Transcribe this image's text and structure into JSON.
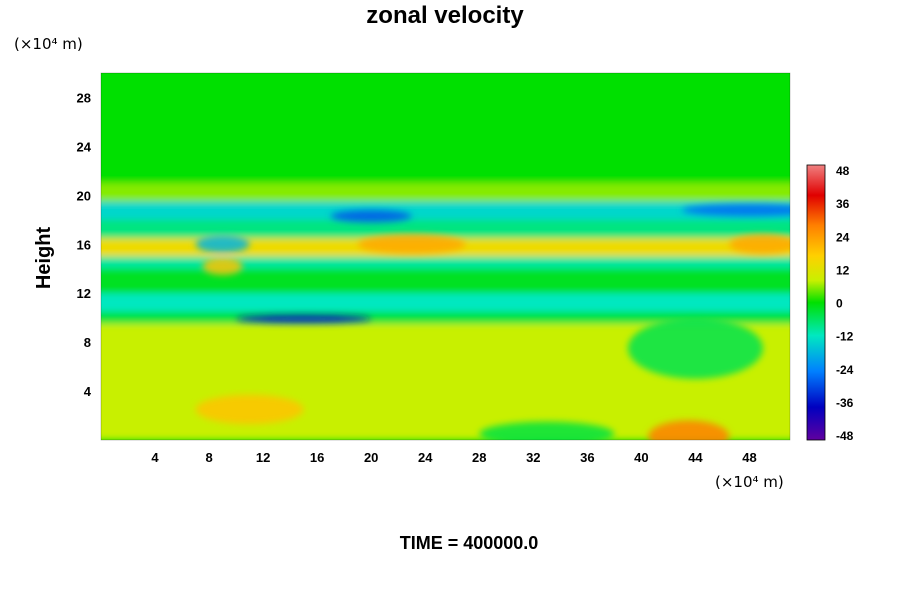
{
  "chart_data": {
    "type": "heatmap",
    "title": "zonal velocity",
    "ylabel": "Height",
    "x_unit": "(×10⁴ m)",
    "y_unit": "(×10⁴ m)",
    "footer": "TIME = 400000.0",
    "xlim": [
      0,
      51
    ],
    "ylim": [
      0,
      30
    ],
    "x_ticks": [
      4,
      8,
      12,
      16,
      20,
      24,
      28,
      32,
      36,
      40,
      44,
      48
    ],
    "y_ticks": [
      4,
      8,
      12,
      16,
      20,
      24,
      28
    ],
    "colorbar": {
      "range": [
        -48,
        48
      ],
      "ticks": [
        48,
        36,
        24,
        12,
        0,
        -12,
        -24,
        -36,
        -48
      ],
      "colors": [
        "#f08080",
        "#e00000",
        "#ff8000",
        "#ffd000",
        "#c8f000",
        "#00e000",
        "#00e8c0",
        "#0080ff",
        "#0000c0",
        "#6000a0"
      ]
    },
    "bands": [
      {
        "y": [
          0,
          9.5
        ],
        "value": 6
      },
      {
        "y": [
          9.5,
          10.5
        ],
        "value": -4
      },
      {
        "y": [
          10.5,
          12
        ],
        "value": -12
      },
      {
        "y": [
          12,
          14
        ],
        "value": -2
      },
      {
        "y": [
          14,
          15
        ],
        "value": -10
      },
      {
        "y": [
          15,
          16.5
        ],
        "value": 10
      },
      {
        "y": [
          16.5,
          18
        ],
        "value": -8
      },
      {
        "y": [
          18,
          19.5
        ],
        "value": -14
      },
      {
        "y": [
          19.5,
          21
        ],
        "value": 4
      },
      {
        "y": [
          21,
          30
        ],
        "value": 0
      }
    ],
    "features": [
      {
        "x": 43.5,
        "y": 0.3,
        "rx": 3,
        "ry": 1.3,
        "value": 24
      },
      {
        "x": 11,
        "y": 2.5,
        "rx": 4,
        "ry": 1.2,
        "value": 14
      },
      {
        "x": 23,
        "y": 16,
        "rx": 4,
        "ry": 0.8,
        "value": 18
      },
      {
        "x": 49,
        "y": 16,
        "rx": 2.5,
        "ry": 0.8,
        "value": 18
      },
      {
        "x": 9,
        "y": 14.2,
        "rx": 1.5,
        "ry": 0.7,
        "value": 14
      },
      {
        "x": 15,
        "y": 9.9,
        "rx": 5,
        "ry": 0.35,
        "value": -34
      },
      {
        "x": 20,
        "y": 18.3,
        "rx": 3,
        "ry": 0.5,
        "value": -28
      },
      {
        "x": 48,
        "y": 18.8,
        "rx": 5,
        "ry": 0.5,
        "value": -26
      },
      {
        "x": 9,
        "y": 16,
        "rx": 2,
        "ry": 0.7,
        "value": -18
      },
      {
        "x": 44,
        "y": 7.5,
        "rx": 5,
        "ry": 2.5,
        "value": -5
      },
      {
        "x": 33,
        "y": 0.5,
        "rx": 5,
        "ry": 1,
        "value": -4
      }
    ]
  }
}
